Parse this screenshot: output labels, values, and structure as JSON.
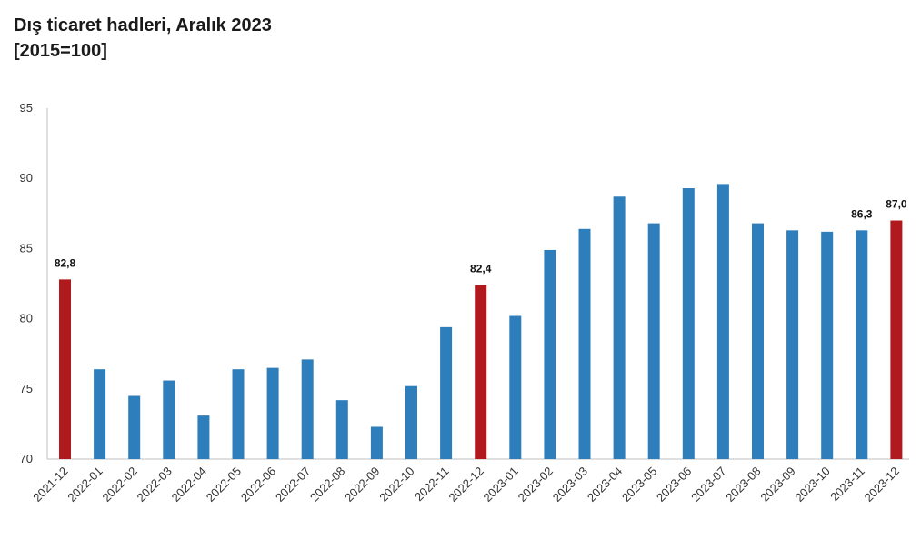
{
  "title": "Dış ticaret hadleri, Aralık 2023",
  "subtitle": "[2015=100]",
  "colors": {
    "bar_default": "#2f7ebc",
    "bar_highlight": "#b01a1f",
    "axis": "#bfbfbf"
  },
  "chart_data": {
    "type": "bar",
    "title": "Dış ticaret hadleri, Aralık 2023",
    "subtitle": "[2015=100]",
    "xlabel": "",
    "ylabel": "",
    "ylim": [
      70,
      95
    ],
    "yticks": [
      70,
      75,
      80,
      85,
      90,
      95
    ],
    "grid": false,
    "categories": [
      "2021-12",
      "2022-01",
      "2022-02",
      "2022-03",
      "2022-04",
      "2022-05",
      "2022-06",
      "2022-07",
      "2022-08",
      "2022-09",
      "2022-10",
      "2022-11",
      "2022-12",
      "2023-01",
      "2023-02",
      "2023-03",
      "2023-04",
      "2023-05",
      "2023-06",
      "2023-07",
      "2023-08",
      "2023-09",
      "2023-10",
      "2023-11",
      "2023-12"
    ],
    "values": [
      82.8,
      76.4,
      74.5,
      75.6,
      73.1,
      76.4,
      76.5,
      77.1,
      74.2,
      72.3,
      75.2,
      79.4,
      82.4,
      80.2,
      84.9,
      86.4,
      88.7,
      86.8,
      89.3,
      89.6,
      86.8,
      86.3,
      86.2,
      86.3,
      87.0
    ],
    "highlight": [
      "2021-12",
      "2022-12",
      "2023-12"
    ],
    "data_labels": [
      {
        "category": "2021-12",
        "text": "82,8"
      },
      {
        "category": "2022-12",
        "text": "82,4"
      },
      {
        "category": "2023-11",
        "text": "86,3"
      },
      {
        "category": "2023-12",
        "text": "87,0"
      }
    ]
  }
}
